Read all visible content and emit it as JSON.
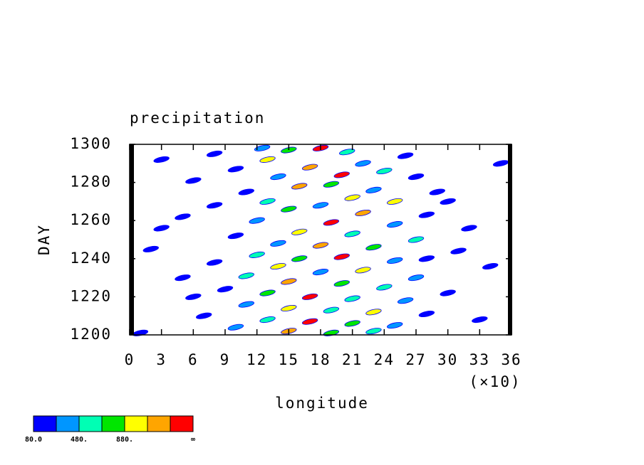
{
  "chart_data": {
    "type": "contour",
    "title": "precipitation",
    "xlabel": "longitude",
    "ylabel": "DAY",
    "x_scale_note": "(×10)",
    "xlim": [
      0,
      36
    ],
    "xticks": [
      0,
      3,
      6,
      9,
      12,
      15,
      18,
      21,
      24,
      27,
      30,
      33,
      36
    ],
    "ylim": [
      1200,
      1300
    ],
    "yticks": [
      1200,
      1220,
      1240,
      1260,
      1280,
      1300
    ],
    "x": [
      12.5,
      15,
      18,
      20.5,
      8,
      3,
      26,
      13,
      22,
      17,
      10,
      24,
      20,
      14,
      27,
      6,
      19,
      16,
      23,
      11,
      29,
      21,
      13,
      25,
      18,
      8,
      15,
      22,
      28,
      5,
      12,
      19,
      25,
      32,
      16,
      21,
      10,
      27,
      14,
      18,
      23,
      2,
      31,
      12,
      20,
      16,
      25,
      8,
      34,
      14,
      22,
      18,
      11,
      27,
      5,
      15,
      20,
      24,
      9,
      30,
      13,
      17,
      21,
      26,
      11,
      15,
      19,
      23,
      28,
      7,
      33,
      13,
      17,
      21,
      25,
      10,
      15,
      19,
      23,
      1,
      3,
      35,
      30,
      6,
      28
    ],
    "y": [
      1298,
      1297,
      1298,
      1296,
      1295,
      1292,
      1294,
      1292,
      1290,
      1288,
      1287,
      1286,
      1284,
      1283,
      1283,
      1281,
      1279,
      1278,
      1276,
      1275,
      1275,
      1272,
      1270,
      1270,
      1268,
      1268,
      1266,
      1264,
      1263,
      1262,
      1260,
      1259,
      1258,
      1256,
      1254,
      1253,
      1252,
      1250,
      1248,
      1247,
      1246,
      1245,
      1244,
      1242,
      1241,
      1240,
      1239,
      1238,
      1236,
      1236,
      1234,
      1233,
      1231,
      1230,
      1230,
      1228,
      1227,
      1225,
      1224,
      1222,
      1222,
      1220,
      1219,
      1218,
      1216,
      1214,
      1213,
      1212,
      1211,
      1210,
      1208,
      1208,
      1207,
      1206,
      1205,
      1204,
      1202,
      1201,
      1202,
      1201,
      1256,
      1290,
      1270,
      1220,
      1240
    ],
    "values": [
      300,
      700,
      1400,
      500,
      100,
      100,
      200,
      900,
      300,
      1100,
      200,
      600,
      1300,
      400,
      100,
      100,
      800,
      1200,
      300,
      150,
      100,
      1000,
      500,
      900,
      300,
      100,
      700,
      1200,
      200,
      100,
      400,
      1350,
      300,
      150,
      900,
      500,
      200,
      600,
      300,
      1100,
      800,
      100,
      100,
      500,
      1300,
      700,
      400,
      150,
      100,
      900,
      1000,
      400,
      600,
      300,
      100,
      1200,
      700,
      500,
      200,
      150,
      800,
      1400,
      600,
      300,
      400,
      1000,
      500,
      900,
      250,
      100,
      100,
      600,
      1300,
      800,
      400,
      300,
      1100,
      700,
      500,
      100,
      100,
      100,
      100,
      150,
      200
    ],
    "levels": [
      80,
      280,
      480,
      680,
      880,
      1080,
      1280
    ],
    "colors": [
      "#0000ff",
      "#0096ff",
      "#00ffb4",
      "#00e600",
      "#ffff00",
      "#ffa500",
      "#ff0000"
    ],
    "colorbar_ticks": [
      {
        "value": 80,
        "label": "80.0"
      },
      {
        "value": 480,
        "label": "480."
      },
      {
        "value": 880,
        "label": "880."
      }
    ],
    "colorbar_end_label": "∞"
  }
}
